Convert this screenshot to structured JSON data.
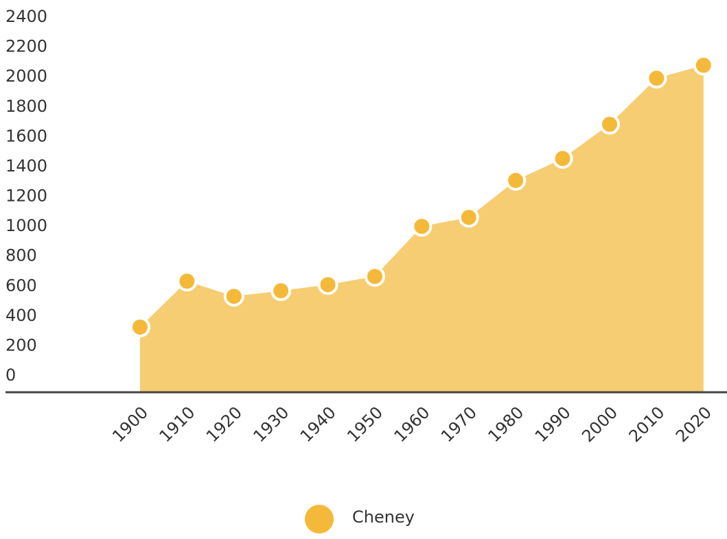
{
  "chart_data": {
    "type": "area",
    "categories": [
      "1900",
      "1910",
      "1920",
      "1930",
      "1940",
      "1950",
      "1960",
      "1970",
      "1980",
      "1990",
      "2000",
      "2010",
      "2020"
    ],
    "series": [
      {
        "name": "Cheney",
        "color": "#f5b93a",
        "area_color": "#f6cd72",
        "values": [
          326,
          633,
          532,
          569,
          610,
          665,
          1000,
          1060,
          1307,
          1454,
          1683,
          1991,
          2078
        ]
      }
    ],
    "ylim": [
      0,
      2400
    ],
    "yticks": [
      0,
      200,
      400,
      600,
      800,
      1000,
      1200,
      1400,
      1600,
      1800,
      2000,
      2200,
      2400
    ],
    "legend": "bottom"
  }
}
